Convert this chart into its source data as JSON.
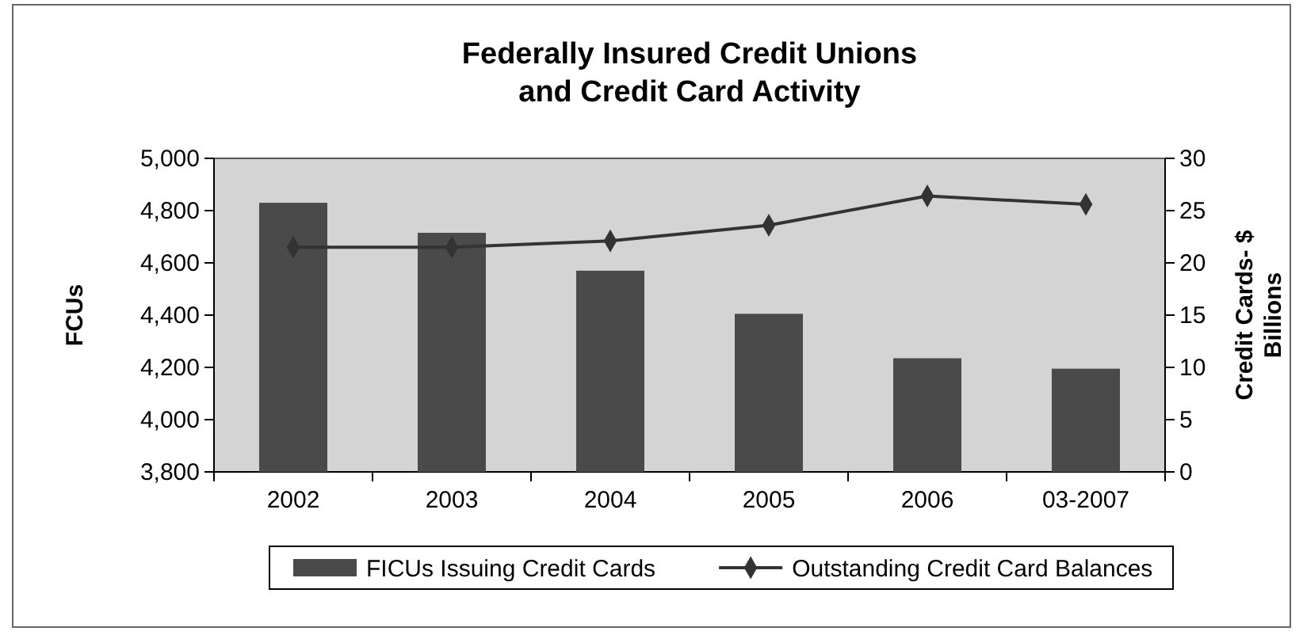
{
  "chart_data": {
    "type": "bar",
    "title": "Federally Insured Credit Unions\nand Credit Card Activity",
    "ylabel": "FCUs",
    "y2label": "Credit Cards- $\nBillions",
    "categories": [
      "2002",
      "2003",
      "2004",
      "2005",
      "2006",
      "03-2007"
    ],
    "series": [
      {
        "name": "FICUs Issuing Credit Cards",
        "color": "#4a4a4a",
        "values": [
          4830,
          4715,
          4570,
          4405,
          4235,
          4195
        ]
      },
      {
        "name": "Outstanding Credit Card Balances",
        "type": "line",
        "axis": "y2",
        "color": "#333333",
        "values": [
          21.5,
          21.5,
          22.1,
          23.6,
          26.4,
          25.6
        ]
      }
    ],
    "ylim": [
      3800,
      5000
    ],
    "yticks": [
      {
        "value": 3800,
        "label": "3,800"
      },
      {
        "value": 4000,
        "label": "4,000"
      },
      {
        "value": 4200,
        "label": "4,200"
      },
      {
        "value": 4400,
        "label": "4,400"
      },
      {
        "value": 4600,
        "label": "4,600"
      },
      {
        "value": 4800,
        "label": "4,800"
      },
      {
        "value": 5000,
        "label": "5,000"
      }
    ],
    "y2lim": [
      0,
      30
    ],
    "y2ticks": [
      0,
      5,
      10,
      15,
      20,
      25,
      30
    ],
    "legend": "bottom",
    "marker": "diamond",
    "line_style": "solid"
  }
}
